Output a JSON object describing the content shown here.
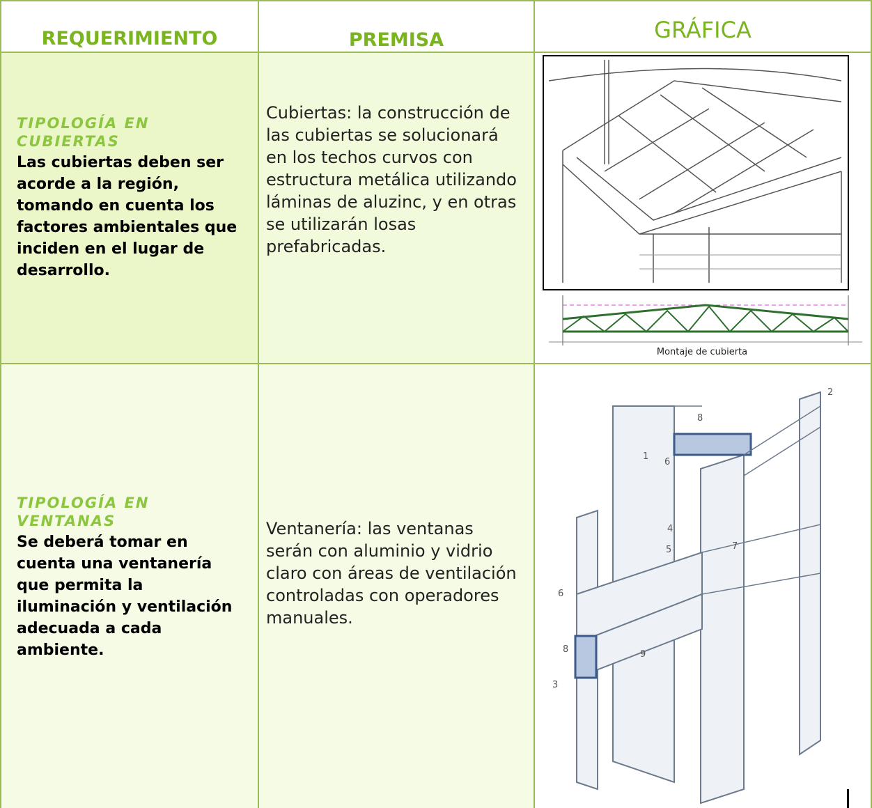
{
  "table": {
    "headers": [
      "REQUERIMIENTO",
      "PREMISA",
      "GRÁFICA"
    ],
    "rows": [
      {
        "title": "TIPOLOGÍA EN CUBIERTAS",
        "requirement": "Las cubiertas deben ser acorde a la región, tomando en cuenta los factores ambientales que inciden en el lugar de desarrollo.",
        "premise": "Cubiertas: la construcción de las cubiertas se solucionará en los techos curvos con estructura metálica utilizando láminas de aluzinc, y en otras se utilizarán losas prefabricadas.",
        "caption": "Montaje de cubierta"
      },
      {
        "title": "TIPOLOGÍA EN VENTANAS",
        "requirement": "Se deberá tomar en cuenta una ventanería que permita la iluminación y ventilación adecuada a cada ambiente.",
        "premise": "Ventanería: las ventanas serán con aluminio y vidrio claro con áreas de ventilación controladas con operadores manuales.",
        "callouts": [
          "2",
          "8",
          "1",
          "6",
          "4",
          "5",
          "7",
          "6",
          "8",
          "9",
          "3"
        ]
      }
    ]
  }
}
